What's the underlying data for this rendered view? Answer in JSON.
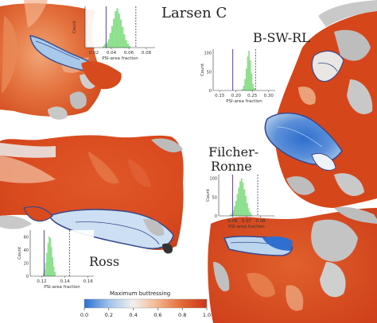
{
  "colors": {
    "ice_high": "#d9481c",
    "ice_mid": "#ee9a6a",
    "ice_low": "#3f7fd0",
    "ice_lowmid": "#a9c9ea",
    "grey_land": "#bfbfbf",
    "hist_bar": "#8fe68f",
    "line_solid": "#6b4fa8",
    "line_dashed": "#6b4fa8",
    "outline": "#3a4a8c"
  },
  "labels": {
    "larsen": "Larsen C",
    "bsw": "B-SW-RL",
    "filcher_1": "Filcher-",
    "filcher_2": "Ronne",
    "ross": "Ross"
  },
  "chart_data": [
    {
      "type": "bar",
      "name": "Larsen C histogram",
      "xlabel": "PSI-area fraction",
      "ylabel": "Count",
      "xticks": [
        "0.02",
        "0.04",
        "0.06",
        "0.08"
      ],
      "xlim": [
        0.01,
        0.09
      ],
      "ylim": [
        0,
        100
      ],
      "yticks": [],
      "bin_edges_start": 0.03,
      "bin_width": 0.002,
      "values": [
        3,
        8,
        12,
        20,
        35,
        52,
        70,
        88,
        95,
        82,
        68,
        50,
        32,
        18,
        9,
        4
      ],
      "solid_line": 0.034,
      "dashed_line": 0.068
    },
    {
      "type": "bar",
      "name": "B-SW-RL histogram",
      "xlabel": "PSI-area fraction",
      "ylabel": "Count",
      "xticks": [
        "0.15",
        "0.20",
        "0.25",
        "0.30"
      ],
      "xlim": [
        0.13,
        0.32
      ],
      "ylim": [
        0,
        110
      ],
      "yticks": [
        "0",
        "50",
        "100"
      ],
      "bin_edges_start": 0.218,
      "bin_width": 0.004,
      "values": [
        4,
        12,
        30,
        58,
        90,
        105,
        80,
        45,
        18,
        6
      ],
      "solid_line": 0.19,
      "dashed_line": 0.26
    },
    {
      "type": "bar",
      "name": "Filcher-Ronne histogram",
      "xlabel": "PSI-area fraction",
      "ylabel": "Count",
      "xticks": [
        "0.06",
        "0.07",
        "0.08"
      ],
      "xlim": [
        0.05,
        0.09
      ],
      "ylim": [
        0,
        110
      ],
      "yticks": [
        "0",
        "50",
        "100"
      ],
      "bin_edges_start": 0.058,
      "bin_width": 0.001,
      "values": [
        3,
        6,
        14,
        26,
        40,
        58,
        75,
        92,
        100,
        88,
        70,
        52,
        34,
        20,
        10,
        4
      ],
      "solid_line": 0.06,
      "dashed_line": 0.078
    },
    {
      "type": "bar",
      "name": "Ross histogram",
      "xlabel": "PSI-area fraction",
      "ylabel": "Count",
      "xticks": [
        "0.12",
        "0.14",
        "0.16"
      ],
      "xlim": [
        0.11,
        0.165
      ],
      "ylim": [
        0,
        70
      ],
      "yticks": [
        "0",
        "20",
        "40",
        "60"
      ],
      "bin_edges_start": 0.121,
      "bin_width": 0.001,
      "values": [
        4,
        10,
        20,
        35,
        50,
        60,
        58,
        44,
        28,
        14,
        6
      ],
      "solid_line": 0.122,
      "dashed_line": 0.144
    }
  ],
  "colorbar": {
    "title": "Maximum buttressing",
    "ticks": [
      "0.0",
      "0.2",
      "0.4",
      "0.6",
      "0.8",
      "1.0"
    ],
    "colors": [
      "#2c6fd1",
      "#9fc3ea",
      "#f3f0ee",
      "#f3b48a",
      "#e36a34",
      "#c8361a"
    ]
  }
}
